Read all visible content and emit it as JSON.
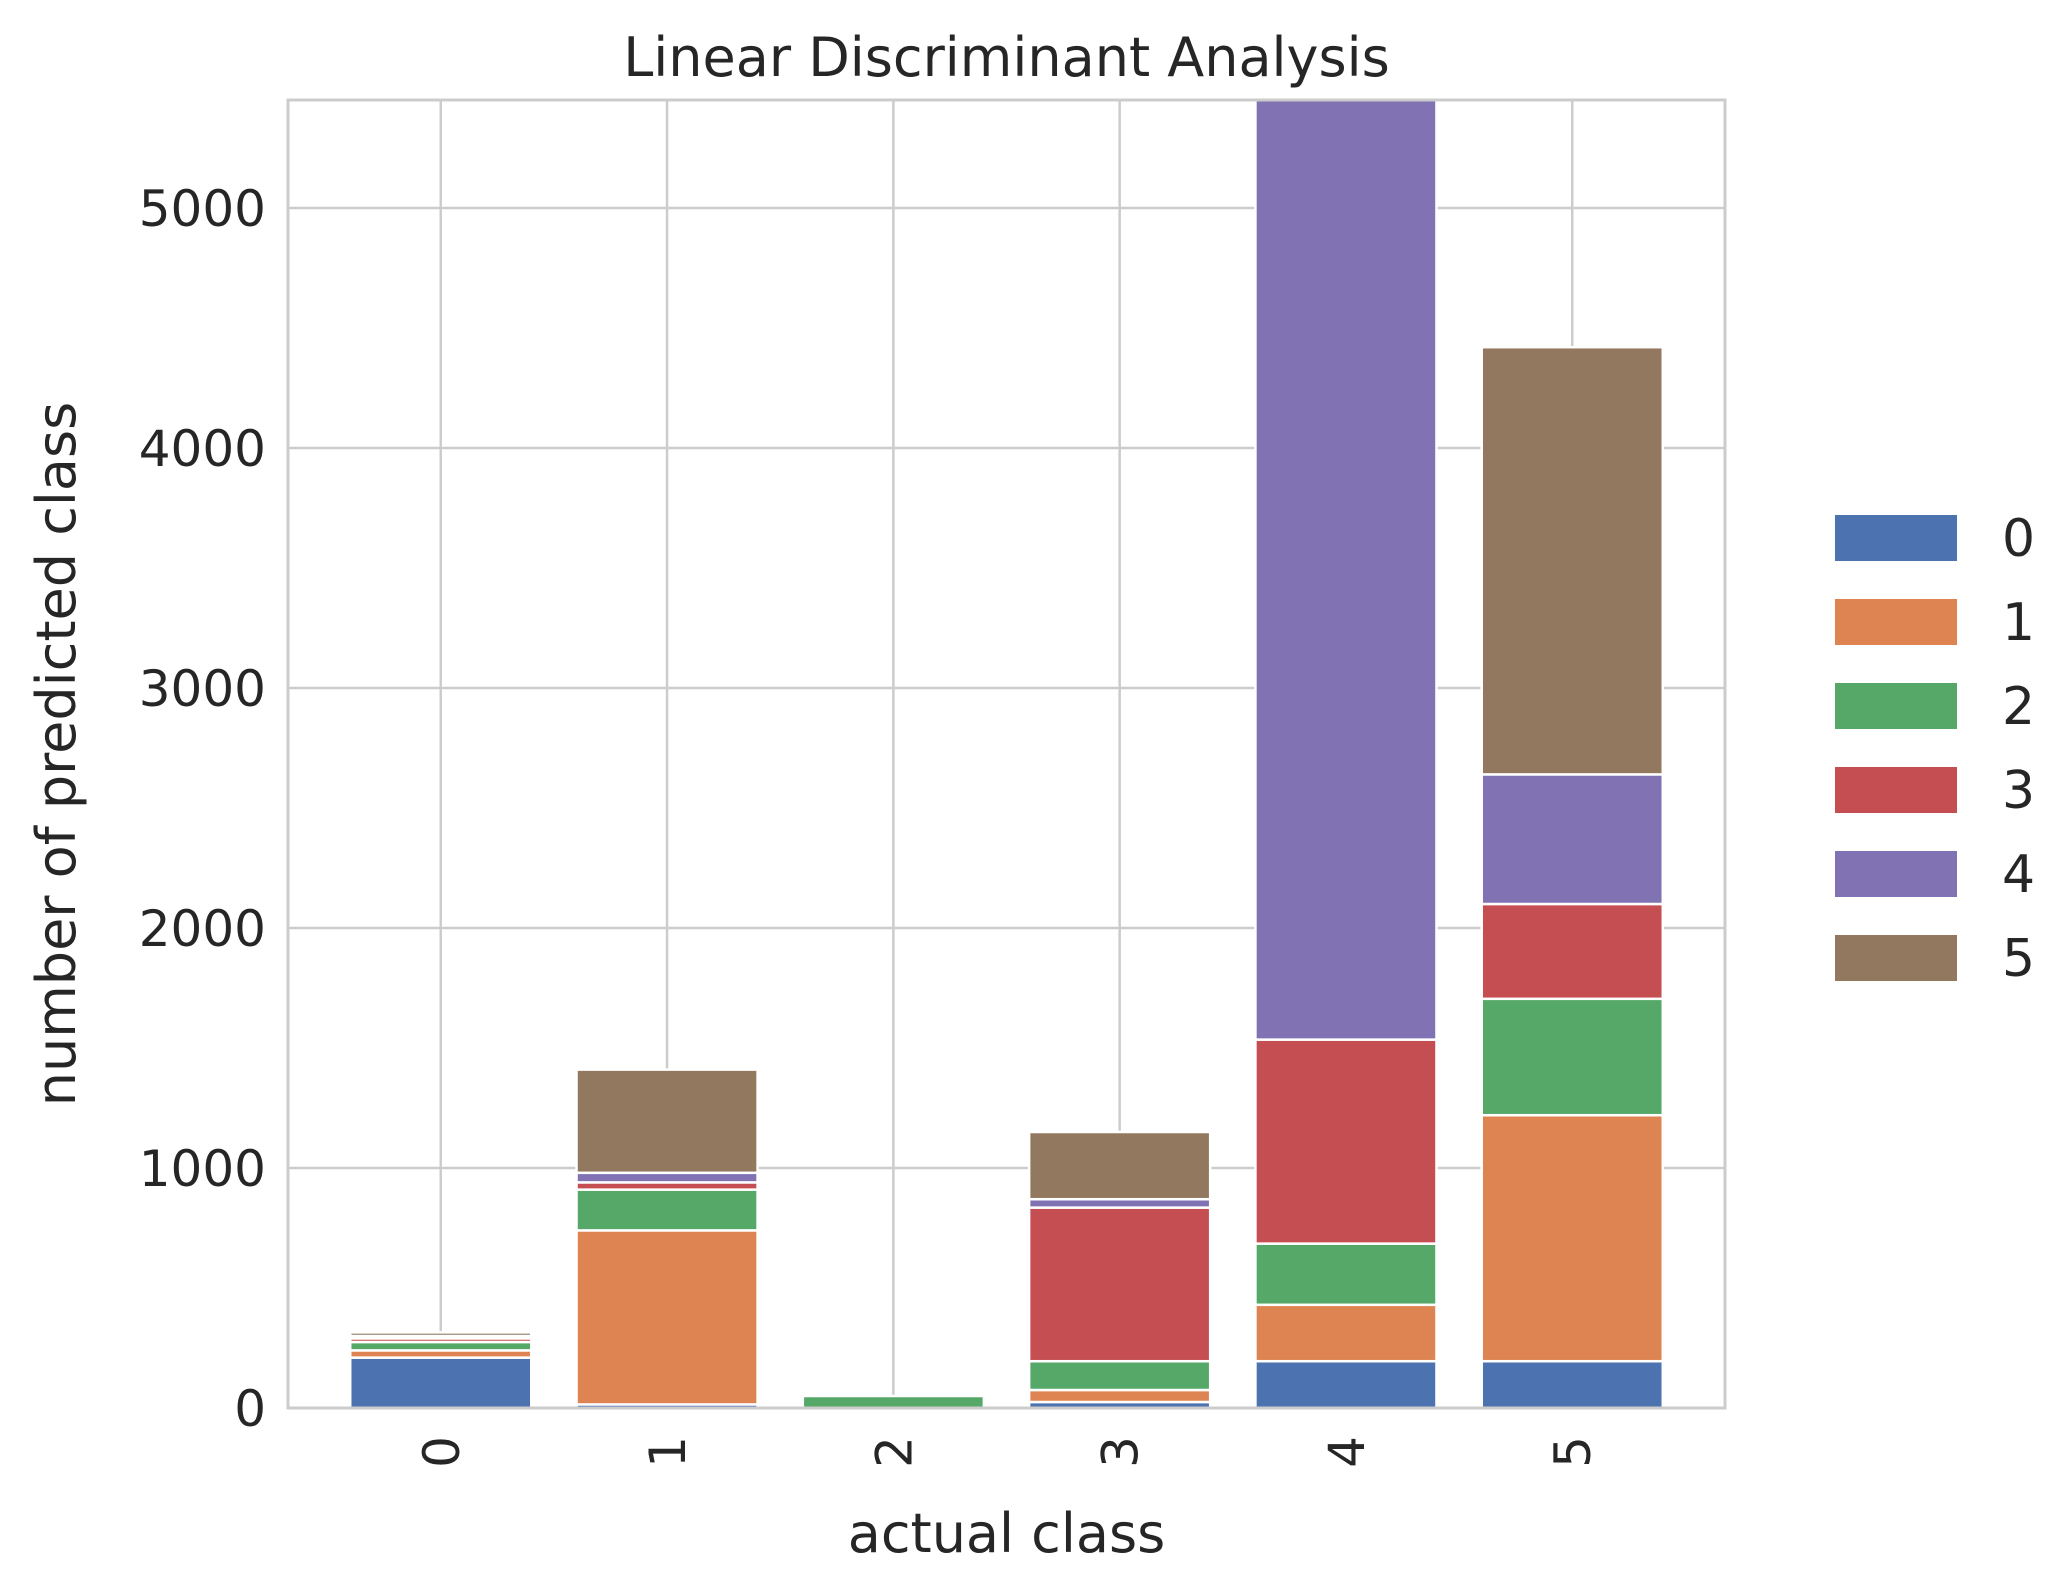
{
  "chart_data": {
    "type": "bar",
    "stacked": true,
    "title": "Linear Discriminant Analysis",
    "xlabel": "actual class",
    "ylabel": "number of predicted class",
    "categories": [
      "0",
      "1",
      "2",
      "3",
      "4",
      "5"
    ],
    "x_tick_rotation": "vertical",
    "ylim": [
      0,
      5450
    ],
    "yticks": [
      0,
      1000,
      2000,
      3000,
      4000,
      5000
    ],
    "grid": true,
    "legend_position": "center-right outside",
    "series": [
      {
        "name": "0",
        "color": "#4c72b0",
        "values": [
          210,
          15,
          0,
          25,
          195,
          195
        ]
      },
      {
        "name": "1",
        "color": "#dd8452",
        "values": [
          30,
          725,
          0,
          50,
          235,
          1025
        ]
      },
      {
        "name": "2",
        "color": "#55a868",
        "values": [
          35,
          170,
          50,
          120,
          255,
          485
        ]
      },
      {
        "name": "3",
        "color": "#c44e52",
        "values": [
          15,
          30,
          0,
          640,
          850,
          395
        ]
      },
      {
        "name": "4",
        "color": "#8172b3",
        "values": [
          10,
          40,
          0,
          35,
          3920,
          540
        ]
      },
      {
        "name": "5",
        "color": "#937860",
        "values": [
          15,
          430,
          0,
          280,
          0,
          1780
        ]
      }
    ]
  }
}
